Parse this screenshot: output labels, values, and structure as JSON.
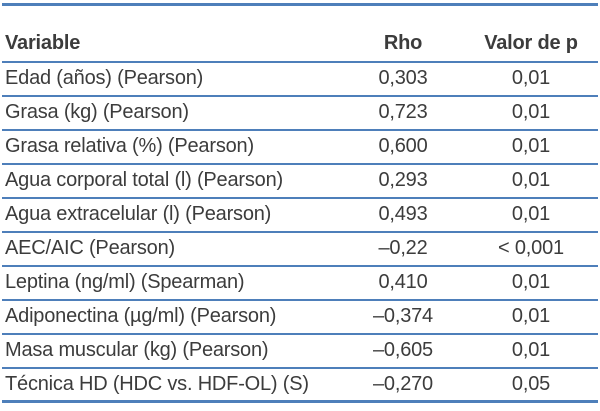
{
  "table": {
    "columns": [
      {
        "label": "Variable"
      },
      {
        "label": "Rho"
      },
      {
        "label": "Valor de p"
      }
    ],
    "rows": [
      {
        "variable": "Edad (años) (Pearson)",
        "rho": "0,303",
        "p": "0,01"
      },
      {
        "variable": "Grasa (kg) (Pearson)",
        "rho": "0,723",
        "p": "0,01"
      },
      {
        "variable": "Grasa relativa (%) (Pearson)",
        "rho": "0,600",
        "p": "0,01"
      },
      {
        "variable": "Agua corporal total (l) (Pearson)",
        "rho": "0,293",
        "p": "0,01"
      },
      {
        "variable": "Agua extracelular (l) (Pearson)",
        "rho": "0,493",
        "p": "0,01"
      },
      {
        "variable": "AEC/AIC (Pearson)",
        "rho": "–0,22",
        "p": "< 0,001"
      },
      {
        "variable": "Leptina (ng/ml) (Spearman)",
        "rho": "0,410",
        "p": "0,01"
      },
      {
        "variable": "Adiponectina (µg/ml) (Pearson)",
        "rho": "–0,374",
        "p": "0,01"
      },
      {
        "variable": "Masa muscular (kg) (Pearson)",
        "rho": "–0,605",
        "p": "0,01"
      },
      {
        "variable": "Técnica HD (HDC vs. HDF-OL) (S)",
        "rho": "–0,270",
        "p": "0,05"
      }
    ],
    "colors": {
      "rule_blue": "#4e7fba",
      "text": "#3c3c3c"
    }
  }
}
